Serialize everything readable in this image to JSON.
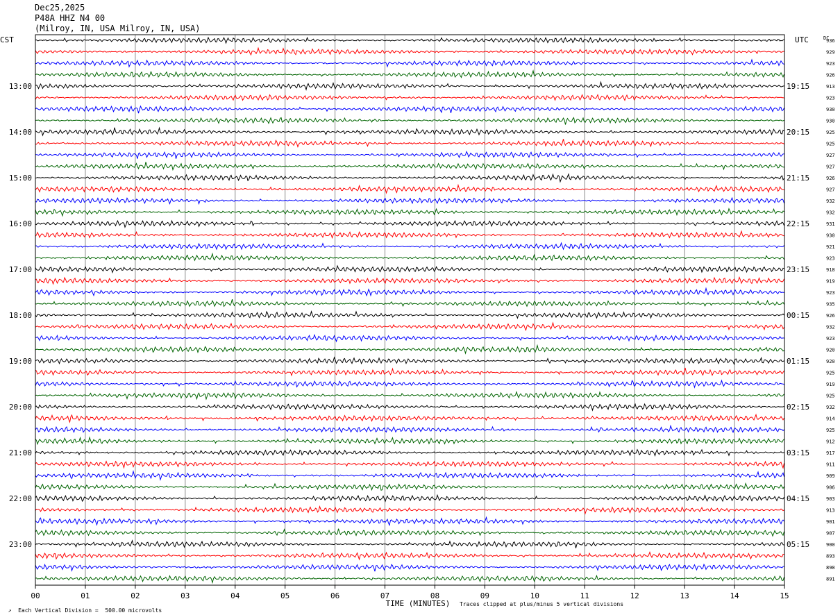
{
  "header": {
    "date": "Dec25,2025",
    "station": "P48A HHZ N4 00",
    "location": "(Milroy, IN, USA Milroy, IN, USA)"
  },
  "chart_data": {
    "type": "line",
    "xlabel": "TIME (MINUTES)",
    "xlim": [
      0,
      15
    ],
    "x_ticks": [
      "00",
      "01",
      "02",
      "03",
      "04",
      "05",
      "06",
      "07",
      "08",
      "09",
      "10",
      "11",
      "12",
      "13",
      "14",
      "15"
    ],
    "left_axis_label": "CST",
    "right_axis_label": "UTC",
    "dc_label": "DC",
    "left_hour_labels": [
      "13:00",
      "14:00",
      "15:00",
      "16:00",
      "17:00",
      "18:00",
      "19:00",
      "20:00",
      "21:00",
      "22:00",
      "23:00"
    ],
    "right_hour_labels": [
      "19:15",
      "20:15",
      "21:15",
      "22:15",
      "23:15",
      "00:15",
      "01:15",
      "02:15",
      "03:15",
      "04:15",
      "05:15"
    ],
    "trace_colors": [
      "#000000",
      "#ff0000",
      "#0000ff",
      "#006400"
    ],
    "dc_offsets": [
      936,
      929,
      923,
      926,
      913,
      923,
      930,
      930,
      925,
      925,
      927,
      927,
      926,
      927,
      932,
      932,
      931,
      930,
      921,
      923,
      918,
      919,
      923,
      935,
      926,
      932,
      923,
      920,
      920,
      925,
      919,
      925,
      932,
      914,
      925,
      912,
      917,
      911,
      909,
      906,
      903,
      913,
      901,
      907,
      900,
      893,
      898,
      891
    ],
    "grid": true
  },
  "footer": {
    "scale_note": "Each Vertical Division =  500.00 microvolts",
    "clip_note": "Traces clipped at plus/minus 5 vertical divisions"
  }
}
